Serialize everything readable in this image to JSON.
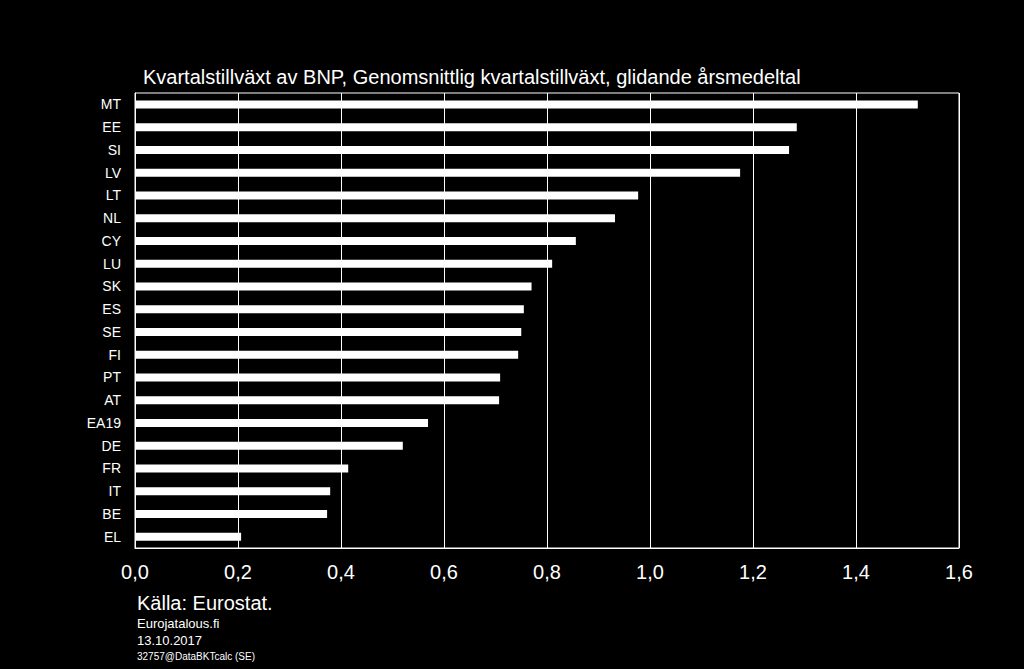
{
  "chart_data": {
    "type": "bar",
    "orientation": "horizontal",
    "title": "Kvartalstillväxt av BNP, Genomsnittlig kvartalstillväxt, glidande årsmedeltal",
    "annotations": [
      "Källa: Eurostat.",
      "Eurojatalous.fi",
      "13.10.2017",
      "32757@DataBKTcalc (SE)"
    ],
    "categories": [
      "MT",
      "EE",
      "SI",
      "LV",
      "LT",
      "NL",
      "CY",
      "LU",
      "SK",
      "ES",
      "SE",
      "FI",
      "PT",
      "AT",
      "EA19",
      "DE",
      "FR",
      "IT",
      "BE",
      "EL"
    ],
    "values": [
      1.52,
      1.285,
      1.27,
      1.175,
      0.977,
      0.932,
      0.856,
      0.81,
      0.77,
      0.755,
      0.75,
      0.744,
      0.709,
      0.707,
      0.569,
      0.52,
      0.414,
      0.379,
      0.373,
      0.206
    ],
    "color": "#ffffff",
    "xlim": [
      0,
      1.6
    ],
    "xticks": [
      {
        "value": 0,
        "label": "0,0"
      },
      {
        "value": 0.2,
        "label": "0,2"
      },
      {
        "value": 0.4,
        "label": "0,4"
      },
      {
        "value": 0.6,
        "label": "0,6"
      },
      {
        "value": 0.8,
        "label": "0,8"
      },
      {
        "value": 1.0,
        "label": "1,0"
      },
      {
        "value": 1.2,
        "label": "1,2"
      },
      {
        "value": 1.4,
        "label": "1,4"
      },
      {
        "value": 1.6,
        "label": "1,6"
      }
    ],
    "grid": true
  }
}
